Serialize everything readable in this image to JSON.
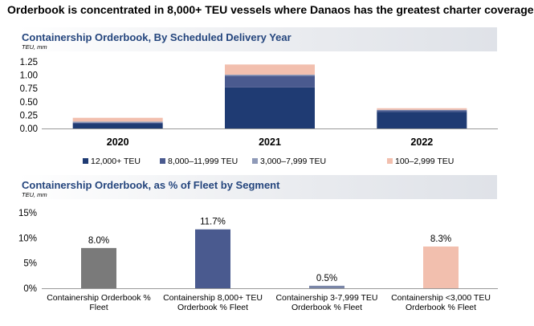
{
  "headline": "Orderbook is concentrated in 8,000+ TEU vessels where Danaos has the greatest charter coverage",
  "chart_data": [
    {
      "type": "bar",
      "stacked": true,
      "title": "Containership Orderbook, By Scheduled Delivery Year",
      "unit": "TEU, mm",
      "categories": [
        "2020",
        "2021",
        "2022"
      ],
      "series": [
        {
          "name": "12,000+ TEU",
          "color": "#1f3b73",
          "values": [
            0.09,
            0.77,
            0.31
          ]
        },
        {
          "name": "8,000–11,999 TEU",
          "color": "#4a5a8f",
          "values": [
            0.02,
            0.22,
            0.03
          ]
        },
        {
          "name": "3,000–7,999 TEU",
          "color": "#8f9ab8",
          "values": [
            0.02,
            0.02,
            0.01
          ]
        },
        {
          "name": "100–2,999 TEU",
          "color": "#f2bfae",
          "values": [
            0.07,
            0.19,
            0.03
          ]
        }
      ],
      "yticks": [
        "0.00",
        "0.25",
        "0.50",
        "0.75",
        "1.00",
        "1.25"
      ],
      "ylim": [
        0,
        1.25
      ],
      "legend": "bottom",
      "grid": false
    },
    {
      "type": "bar",
      "title": "Containership Orderbook, as % of Fleet by Segment",
      "unit": "TEU, mm",
      "categories": [
        [
          "Containership Orderbook %",
          "Fleet"
        ],
        [
          "Containership 8,000+ TEU",
          "Orderbook % Fleet"
        ],
        [
          "Containership 3-7,999 TEU",
          "Orderbook % Fleet"
        ],
        [
          "Containership <3,000 TEU",
          "Orderbook % Fleet"
        ]
      ],
      "values": [
        8.0,
        11.7,
        0.5,
        8.3
      ],
      "value_labels": [
        "8.0%",
        "11.7%",
        "0.5%",
        "8.3%"
      ],
      "colors": [
        "#7a7a7a",
        "#4a5a8f",
        "#7a86a8",
        "#f2bfae"
      ],
      "yticks": [
        "0%",
        "5%",
        "10%",
        "15%"
      ],
      "ylim": [
        0,
        15
      ],
      "grid": false
    }
  ]
}
